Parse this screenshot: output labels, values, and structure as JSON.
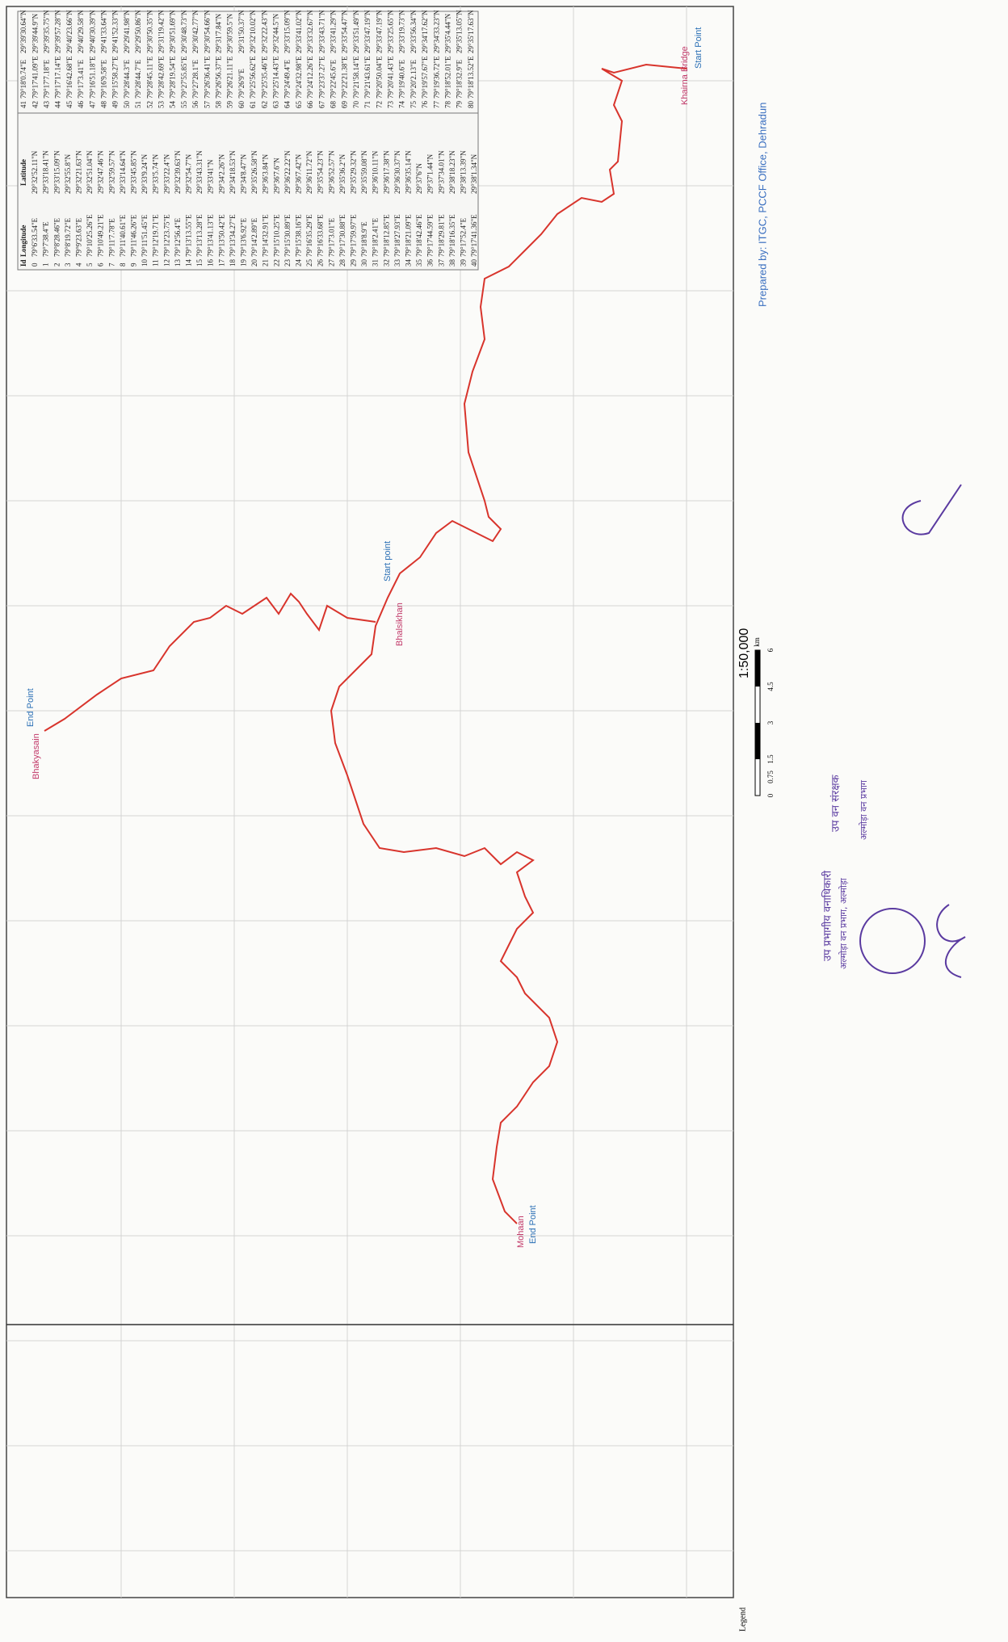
{
  "map": {
    "labels": {
      "start_top": "Start Point",
      "place_top": "Khairna Bridge",
      "start_mid": "Start point",
      "place_mid": "Bhalsikhan",
      "end_left": "End Point",
      "place_left": "Bhakyasain",
      "end_bottom": "End Point",
      "place_bottom": "Mohaan"
    },
    "scale": {
      "ratio": "1:50,000",
      "ticks": [
        "0",
        "0.75",
        "1.5",
        "3",
        "4.5",
        "6"
      ],
      "unit": "km"
    },
    "credit": "Prepared by: ITGC, PCCF Office, Dehradun",
    "legend": "Legend",
    "stamps": [
      "उप प्रभागीय वनाधिकारी",
      "अल्मोड़ा वन प्रभाग, अल्मोड़ा",
      "उप वन संरक्षक",
      "अल्मोड़ा वन प्रभाग"
    ]
  },
  "table": {
    "header": [
      "Id",
      "Longitude",
      "Latitude"
    ],
    "rows": [
      [
        "0",
        "79°6'33.54\"E",
        "29°32'52.11\"N"
      ],
      [
        "1",
        "79°7'38.4\"E",
        "29°33'18.41\"N"
      ],
      [
        "2",
        "79°8'28.46\"E",
        "29°33'15.09\"N"
      ],
      [
        "3",
        "79°8'19.72\"E",
        "29°32'55.8\"N"
      ],
      [
        "4",
        "79°9'23.63\"E",
        "29°32'21.63\"N"
      ],
      [
        "5",
        "79°10'25.26\"E",
        "29°32'51.04\"N"
      ],
      [
        "6",
        "79°10'49.21\"E",
        "29°32'47.46\"N"
      ],
      [
        "7",
        "79°11'7.78\"E",
        "29°32'59.57\"N"
      ],
      [
        "8",
        "79°11'40.61\"E",
        "29°33'14.64\"N"
      ],
      [
        "9",
        "79°11'46.26\"E",
        "29°33'45.85\"N"
      ],
      [
        "10",
        "79°11'51.45\"E",
        "29°33'9.24\"N"
      ],
      [
        "11",
        "79°12'19.71\"E",
        "29°33'5.74\"N"
      ],
      [
        "12",
        "79°12'23.75\"E",
        "29°33'22.4\"N"
      ],
      [
        "13",
        "79°12'56.4\"E",
        "29°32'39.63\"N"
      ],
      [
        "14",
        "79°13'13.55\"E",
        "29°32'54.7\"N"
      ],
      [
        "15",
        "79°13'13.28\"E",
        "29°33'43.31\"N"
      ],
      [
        "16",
        "79°13'41.13\"E",
        "29°33'41\"N"
      ],
      [
        "17",
        "79°13'50.42\"E",
        "29°34'2.26\"N"
      ],
      [
        "18",
        "79°13'34.27\"E",
        "29°34'18.53\"N"
      ],
      [
        "19",
        "79°13'6.92\"E",
        "29°34'8.47\"N"
      ],
      [
        "20",
        "79°14'2.89\"E",
        "29°35'26.58\"N"
      ],
      [
        "21",
        "79°14'32.91\"E",
        "29°36'3.84\"N"
      ],
      [
        "22",
        "79°15'10.25\"E",
        "29°36'7.6\"N"
      ],
      [
        "23",
        "79°15'30.89\"E",
        "29°36'22.22\"N"
      ],
      [
        "24",
        "79°15'38.16\"E",
        "29°36'7.42\"N"
      ],
      [
        "25",
        "79°16'35.29\"E",
        "29°36'11.72\"N"
      ],
      [
        "26",
        "79°16'33.68\"E",
        "29°35'54.23\"N"
      ],
      [
        "27",
        "79°17'3.01\"E",
        "29°36'52.57\"N"
      ],
      [
        "28",
        "79°17'30.88\"E",
        "29°35'36.2\"N"
      ],
      [
        "29",
        "79°17'59.97\"E",
        "29°35'29.32\"N"
      ],
      [
        "30",
        "79°18'8.9\"E",
        "29°35'59.08\"N"
      ],
      [
        "31",
        "79°18'2.41\"E",
        "29°36'10.11\"N"
      ],
      [
        "32",
        "79°18'12.85\"E",
        "29°36'17.38\"N"
      ],
      [
        "33",
        "79°18'27.93\"E",
        "29°36'30.37\"N"
      ],
      [
        "34",
        "79°18'21.09\"E",
        "29°36'35.14\"N"
      ],
      [
        "35",
        "79°18'42.46\"E",
        "29°37'6\"N"
      ],
      [
        "36",
        "79°17'44.59\"E",
        "29°37'1.44\"N"
      ],
      [
        "37",
        "79°18'29.81\"E",
        "29°37'34.01\"N"
      ],
      [
        "38",
        "79°18'16.35\"E",
        "29°38'18.23\"N"
      ],
      [
        "39",
        "79°17'52.4\"E",
        "29°38'13.39\"N"
      ],
      [
        "40",
        "79°17'41.36\"E",
        "29°38'1.34\"N"
      ],
      [
        "41",
        "79°18'0.74\"E",
        "29°39'30.64\"N"
      ],
      [
        "42",
        "79°17'41.09\"E",
        "29°39'44.9\"N"
      ],
      [
        "43",
        "79°17'7.18\"E",
        "29°39'35.75\"N"
      ],
      [
        "44",
        "79°17'17.14\"E",
        "29°39'57.28\"N"
      ],
      [
        "45",
        "79°16'42.68\"E",
        "29°40'23.66\"N"
      ],
      [
        "46",
        "79°17'3.41\"E",
        "29°40'29.58\"N"
      ],
      [
        "47",
        "79°16'51.18\"E",
        "29°40'30.39\"N"
      ],
      [
        "48",
        "79°16'9.58\"E",
        "29°41'33.64\"N"
      ],
      [
        "49",
        "79°15'58.27\"E",
        "29°41'52.33\"N"
      ],
      [
        "50",
        "79°28'44.3\"E",
        "29°29'41.98\"N"
      ],
      [
        "51",
        "79°28'44.7\"E",
        "29°29'50.86\"N"
      ],
      [
        "52",
        "79°28'45.11\"E",
        "29°30'50.35\"N"
      ],
      [
        "53",
        "79°28'42.69\"E",
        "29°31'19.42\"N"
      ],
      [
        "54",
        "79°28'19.54\"E",
        "29°30'51.69\"N"
      ],
      [
        "55",
        "79°27'55.85\"E",
        "29°30'48.73\"N"
      ],
      [
        "56",
        "79°27'28.1\"E",
        "29°30'42.77\"N"
      ],
      [
        "57",
        "79°26'36.41\"E",
        "29°30'54.66\"N"
      ],
      [
        "58",
        "79°26'56.37\"E",
        "29°31'7.84\"N"
      ],
      [
        "59",
        "79°26'21.11\"E",
        "29°30'59.5\"N"
      ],
      [
        "60",
        "79°26'9\"E",
        "29°31'50.37\"N"
      ],
      [
        "61",
        "79°25'56.62\"E",
        "29°32'10.02\"N"
      ],
      [
        "62",
        "79°25'35.46\"E",
        "29°32'22.43\"N"
      ],
      [
        "63",
        "79°25'14.43\"E",
        "29°32'44.5\"N"
      ],
      [
        "64",
        "79°24'49.4\"E",
        "29°33'15.09\"N"
      ],
      [
        "65",
        "79°24'32.98\"E",
        "29°33'41.02\"N"
      ],
      [
        "66",
        "79°24'12.26\"E",
        "29°33'32.67\"N"
      ],
      [
        "67",
        "79°23'37.27\"E",
        "29°33'43.71\"N"
      ],
      [
        "68",
        "79°22'45.6\"E",
        "29°33'41.29\"N"
      ],
      [
        "69",
        "79°22'21.38\"E",
        "29°33'54.47\"N"
      ],
      [
        "70",
        "79°21'58.14\"E",
        "29°33'51.49\"N"
      ],
      [
        "71",
        "79°21'43.61\"E",
        "29°33'47.19\"N"
      ],
      [
        "72",
        "79°20'50.04\"E",
        "29°33'47.19\"N"
      ],
      [
        "73",
        "79°20'41.43\"E",
        "29°33'25.65\"N"
      ],
      [
        "74",
        "79°19'40.6\"E",
        "29°33'19.73\"N"
      ],
      [
        "75",
        "79°20'2.13\"E",
        "29°33'56.34\"N"
      ],
      [
        "76",
        "79°19'57.67\"E",
        "29°34'17.62\"N"
      ],
      [
        "77",
        "79°19'36.72\"E",
        "29°34'33.23\"N"
      ],
      [
        "78",
        "79°18'52.01\"E",
        "29°35'4.44\"N"
      ],
      [
        "79",
        "79°18'32.9\"E",
        "29°35'13.05\"N"
      ],
      [
        "80",
        "79°18'13.52\"E",
        "29°35'17.63\"N"
      ]
    ]
  }
}
